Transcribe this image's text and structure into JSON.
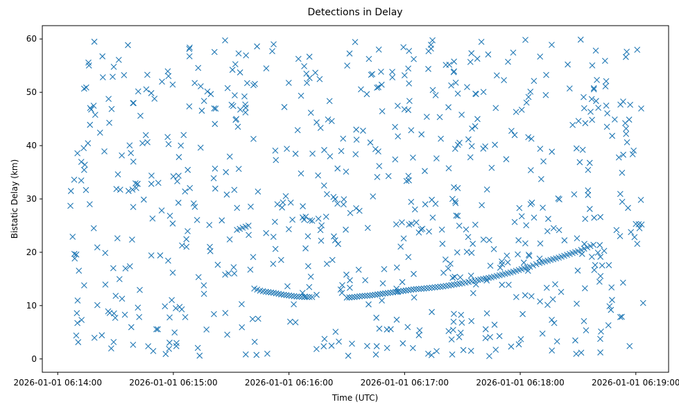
{
  "chart_data": {
    "type": "scatter",
    "title": "Detections in Delay",
    "xlabel": "Time (UTC)",
    "ylabel": "Bistatic Delay (km)",
    "marker": "x",
    "color": "#1f77b4",
    "grid": false,
    "xlim": [
      "2026-01-01 06:13:52",
      "2026-01-01 06:19:17"
    ],
    "ylim": [
      -2.5,
      62.5
    ],
    "x_ticks": [
      "2026-01-01 06:14:00",
      "2026-01-01 06:15:00",
      "2026-01-01 06:16:00",
      "2026-01-01 06:17:00",
      "2026-01-01 06:18:00",
      "2026-01-01 06:19:00"
    ],
    "y_ticks": [
      0,
      10,
      20,
      30,
      40,
      50,
      60
    ],
    "track": {
      "name": "",
      "points": [
        [
          "2026-01-01 06:15:33",
          24.2
        ],
        [
          "2026-01-01 06:15:36",
          24.6
        ],
        [
          "2026-01-01 06:15:39",
          25.0
        ],
        [
          "2026-01-01 06:15:42",
          13.2
        ],
        [
          "2026-01-01 06:15:45",
          12.8
        ],
        [
          "2026-01-01 06:15:48",
          12.6
        ],
        [
          "2026-01-01 06:15:52",
          12.4
        ],
        [
          "2026-01-01 06:15:56",
          12.1
        ],
        [
          "2026-01-01 06:16:00",
          11.9
        ],
        [
          "2026-01-01 06:16:04",
          11.7
        ],
        [
          "2026-01-01 06:16:08",
          11.6
        ],
        [
          "2026-01-01 06:16:12",
          11.6
        ],
        [
          "2026-01-01 06:16:30",
          11.5
        ],
        [
          "2026-01-01 06:16:34",
          11.6
        ],
        [
          "2026-01-01 06:16:38",
          11.8
        ],
        [
          "2026-01-01 06:16:42",
          11.9
        ],
        [
          "2026-01-01 06:16:46",
          12.1
        ],
        [
          "2026-01-01 06:16:50",
          12.3
        ],
        [
          "2026-01-01 06:16:54",
          12.5
        ],
        [
          "2026-01-01 06:16:58",
          12.7
        ],
        [
          "2026-01-01 06:17:02",
          12.9
        ],
        [
          "2026-01-01 06:17:06",
          13.1
        ],
        [
          "2026-01-01 06:17:10",
          13.2
        ],
        [
          "2026-01-01 06:17:20",
          13.6
        ],
        [
          "2026-01-01 06:17:30",
          14.2
        ],
        [
          "2026-01-01 06:17:38",
          14.8
        ],
        [
          "2026-01-01 06:17:45",
          15.3
        ],
        [
          "2026-01-01 06:17:55",
          16.2
        ],
        [
          "2026-01-01 06:18:05",
          17.3
        ],
        [
          "2026-01-01 06:18:10",
          18.0
        ],
        [
          "2026-01-01 06:18:20",
          19.0
        ],
        [
          "2026-01-01 06:18:30",
          20.2
        ],
        [
          "2026-01-01 06:18:38",
          21.4
        ],
        [
          "2026-01-01 06:19:00",
          25.3
        ],
        [
          "2026-01-01 06:19:03",
          25.2
        ]
      ]
    },
    "clutter": {
      "name": "",
      "count": 700,
      "x_range": [
        "2026-01-01 06:14:06",
        "2026-01-01 06:19:04"
      ],
      "y_range": [
        0.5,
        60
      ]
    }
  }
}
